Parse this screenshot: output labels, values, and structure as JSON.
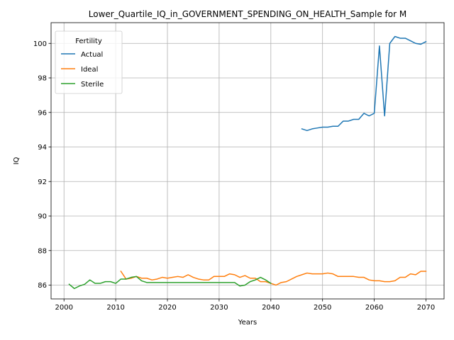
{
  "chart_data": {
    "type": "line",
    "title": "Lower_Quartile_IQ_in_GOVERNMENT_SPENDING_ON_HEALTH_Sample for M",
    "xlabel": "Years",
    "ylabel": "IQ",
    "xlim": [
      1997.5,
      2073.5
    ],
    "ylim": [
      85.2,
      101.2
    ],
    "xticks": [
      2000,
      2010,
      2020,
      2030,
      2040,
      2050,
      2060,
      2070
    ],
    "yticks": [
      86,
      88,
      90,
      92,
      94,
      96,
      98,
      100
    ],
    "grid": true,
    "legend": {
      "title": "Fertility",
      "position": "top-left"
    },
    "series": [
      {
        "name": "Actual",
        "color": "#1f77b4",
        "x": [
          2046,
          2047,
          2048,
          2049,
          2050,
          2051,
          2052,
          2053,
          2054,
          2055,
          2056,
          2057,
          2058,
          2059,
          2060,
          2061,
          2062,
          2063,
          2064,
          2065,
          2066,
          2067,
          2068,
          2069,
          2070
        ],
        "y": [
          95.05,
          94.95,
          95.05,
          95.1,
          95.15,
          95.15,
          95.2,
          95.2,
          95.5,
          95.5,
          95.6,
          95.6,
          95.95,
          95.8,
          95.95,
          99.85,
          95.8,
          100.0,
          100.4,
          100.3,
          100.3,
          100.15,
          100.0,
          99.95,
          100.1
        ]
      },
      {
        "name": "Ideal",
        "color": "#ff7f0e",
        "x": [
          2011,
          2012,
          2013,
          2014,
          2015,
          2016,
          2017,
          2018,
          2019,
          2020,
          2021,
          2022,
          2023,
          2024,
          2025,
          2026,
          2027,
          2028,
          2029,
          2030,
          2031,
          2032,
          2033,
          2034,
          2035,
          2036,
          2037,
          2038,
          2039,
          2040,
          2041,
          2042,
          2043,
          2044,
          2045,
          2046,
          2047,
          2048,
          2049,
          2050,
          2051,
          2052,
          2053,
          2054,
          2055,
          2056,
          2057,
          2058,
          2059,
          2060,
          2061,
          2062,
          2063,
          2064,
          2065,
          2066,
          2067,
          2068,
          2069,
          2070
        ],
        "y": [
          86.8,
          86.35,
          86.4,
          86.5,
          86.4,
          86.4,
          86.3,
          86.35,
          86.45,
          86.4,
          86.45,
          86.5,
          86.45,
          86.6,
          86.45,
          86.35,
          86.3,
          86.3,
          86.5,
          86.5,
          86.5,
          86.65,
          86.6,
          86.45,
          86.55,
          86.4,
          86.4,
          86.2,
          86.2,
          86.1,
          86.0,
          86.15,
          86.2,
          86.35,
          86.5,
          86.6,
          86.7,
          86.65,
          86.65,
          86.65,
          86.7,
          86.65,
          86.5,
          86.5,
          86.5,
          86.5,
          86.45,
          86.45,
          86.3,
          86.25,
          86.25,
          86.2,
          86.2,
          86.25,
          86.45,
          86.45,
          86.65,
          86.6,
          86.8,
          86.8
        ]
      },
      {
        "name": "Sterile",
        "color": "#2ca02c",
        "x": [
          2001,
          2002,
          2003,
          2004,
          2005,
          2006,
          2007,
          2008,
          2009,
          2010,
          2011,
          2012,
          2013,
          2014,
          2015,
          2016,
          2017,
          2018,
          2019,
          2020,
          2021,
          2022,
          2023,
          2024,
          2025,
          2026,
          2027,
          2028,
          2029,
          2030,
          2031,
          2032,
          2033,
          2034,
          2035,
          2036,
          2037,
          2038,
          2039,
          2040
        ],
        "y": [
          86.05,
          85.8,
          85.95,
          86.05,
          86.3,
          86.1,
          86.1,
          86.2,
          86.2,
          86.1,
          86.35,
          86.35,
          86.45,
          86.5,
          86.25,
          86.15,
          86.15,
          86.15,
          86.15,
          86.15,
          86.15,
          86.15,
          86.15,
          86.15,
          86.15,
          86.15,
          86.15,
          86.15,
          86.15,
          86.15,
          86.15,
          86.15,
          86.15,
          85.95,
          86.0,
          86.2,
          86.3,
          86.45,
          86.3,
          86.1
        ]
      }
    ]
  }
}
